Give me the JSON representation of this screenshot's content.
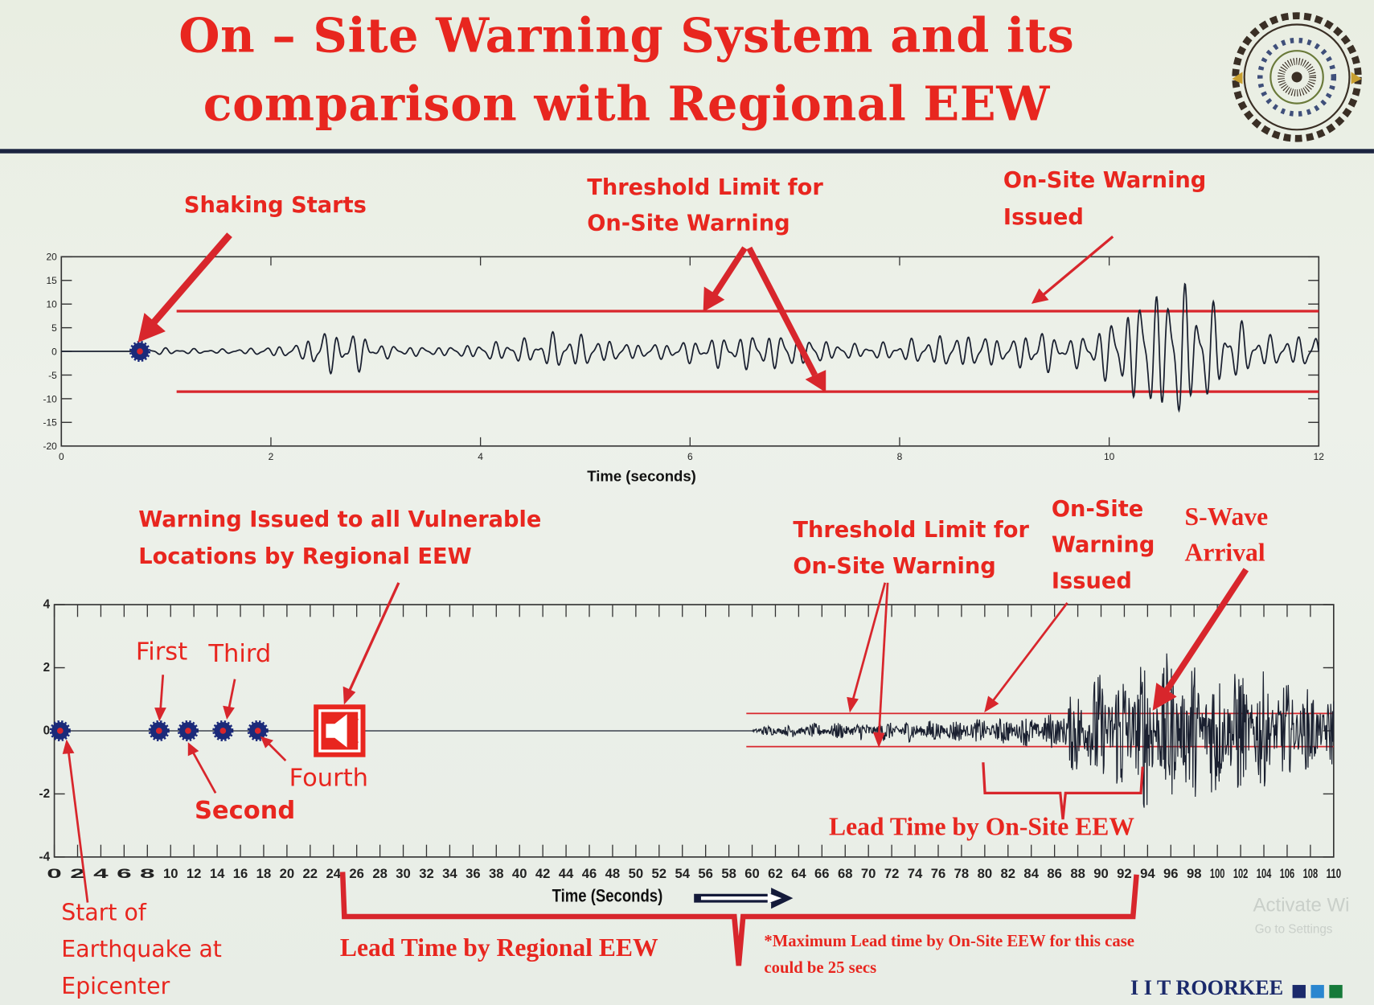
{
  "title": {
    "line1": "On – Site Warning System and its",
    "line2": "comparison with Regional EEW"
  },
  "logo": {
    "name": "iit-roorkee-seal",
    "text": "Indian Institute of Technology Roorkee"
  },
  "top_annotations": {
    "shaking_starts": "Shaking Starts",
    "threshold_line1": "Threshold Limit for",
    "threshold_line2": "On-Site Warning",
    "onsite_line1": "On-Site Warning",
    "onsite_line2": "Issued"
  },
  "bottom_annotations": {
    "regional_line1": "Warning Issued to all Vulnerable",
    "regional_line2": "Locations by Regional EEW",
    "threshold_line1": "Threshold Limit for",
    "threshold_line2": "On-Site Warning",
    "onsite_line1": "On-Site",
    "onsite_line2": "Warning",
    "onsite_line3": "Issued",
    "swave_line1": "S-Wave",
    "swave_line2": "Arrival",
    "first": "First",
    "second": "Second",
    "third": "Third",
    "fourth": "Fourth",
    "start_line1": "Start of",
    "start_line2": "Earthquake at",
    "start_line3": "Epicenter",
    "lead_onsite": "Lead Time by On-Site EEW",
    "lead_regional": "Lead Time by Regional EEW",
    "footnote_line1": "*Maximum Lead time by On-Site EEW for this case",
    "footnote_line2": "could be 25 secs"
  },
  "footer": {
    "brand": "I I T ROORKEE",
    "squares": [
      "#1b2a6b",
      "#2a86d0",
      "#167a3a"
    ],
    "watermark_line1": "Activate Wi",
    "watermark_line2": "Go to Settings"
  },
  "colors": {
    "accent_red": "#e8261f",
    "waveform": "#1a2030",
    "marker": "#1b2a7a",
    "threshold": "#d8262c"
  },
  "chart_data": [
    {
      "type": "line",
      "xlabel": "Time (seconds)",
      "ylabel": "",
      "xlim": [
        0,
        12
      ],
      "ylim": [
        -20,
        20
      ],
      "xticks": [
        0,
        2,
        4,
        6,
        8,
        10,
        12
      ],
      "yticks": [
        20,
        15,
        10,
        5,
        0,
        -5,
        -10,
        -15,
        -20
      ],
      "grid": false,
      "thresholds": {
        "values": [
          8.5,
          -8.5
        ],
        "start_time": 1.1
      },
      "markers": [
        {
          "label": "Shaking Starts",
          "time": 0.75,
          "value": 0
        }
      ],
      "onsite_warning_time": 9.3,
      "series": [
        {
          "amplitude_envelope": [
            [
              0,
              0
            ],
            [
              0.75,
              0
            ],
            [
              0.8,
              1
            ],
            [
              1.8,
              1.5
            ],
            [
              2.3,
              2
            ],
            [
              2.4,
              5
            ],
            [
              2.9,
              5
            ],
            [
              3.0,
              2.5
            ],
            [
              4.5,
              3
            ],
            [
              4.8,
              5
            ],
            [
              6.5,
              4
            ],
            [
              7.0,
              5
            ],
            [
              8.0,
              4
            ],
            [
              9.1,
              4
            ],
            [
              9.3,
              11
            ],
            [
              9.6,
              8
            ],
            [
              10.0,
              13
            ],
            [
              10.3,
              16
            ],
            [
              10.7,
              17
            ],
            [
              11.0,
              13
            ],
            [
              11.5,
              9
            ],
            [
              12,
              8
            ]
          ]
        }
      ]
    },
    {
      "type": "line",
      "xlabel": "Time (Seconds)",
      "ylabel": "",
      "xlim": [
        0,
        110
      ],
      "ylim": [
        -4,
        4
      ],
      "xticks": [
        0,
        2,
        4,
        6,
        8,
        10,
        12,
        14,
        16,
        18,
        20,
        22,
        24,
        26,
        28,
        30,
        32,
        34,
        36,
        38,
        40,
        42,
        44,
        46,
        48,
        50,
        52,
        54,
        56,
        58,
        60,
        62,
        64,
        66,
        68,
        70,
        72,
        74,
        76,
        78,
        80,
        82,
        84,
        86,
        88,
        90,
        92,
        94,
        96,
        98,
        100,
        102,
        104,
        106,
        108,
        110
      ],
      "yticks": [
        4,
        2,
        0,
        -2,
        -4
      ],
      "grid": false,
      "thresholds": {
        "values": [
          0.55,
          -0.5
        ],
        "start_time": 59.5
      },
      "markers": [
        {
          "label": "Start of Earthquake at Epicenter",
          "time": 0.5,
          "value": 0
        },
        {
          "label": "First",
          "time": 9,
          "value": 0
        },
        {
          "label": "Second",
          "time": 11.5,
          "value": 0
        },
        {
          "label": "Third",
          "time": 14.5,
          "value": 0
        },
        {
          "label": "Fourth",
          "time": 17.5,
          "value": 0
        }
      ],
      "regional_warning_time": 24,
      "onsite_warning_time": 80,
      "swave_arrival_time": 94,
      "lead_time_regional": [
        24,
        93
      ],
      "lead_time_onsite": [
        80,
        93
      ],
      "series": [
        {
          "amplitude_envelope": [
            [
              0,
              0
            ],
            [
              60,
              0
            ],
            [
              60.2,
              0.15
            ],
            [
              66,
              0.25
            ],
            [
              72,
              0.35
            ],
            [
              80,
              0.4
            ],
            [
              86,
              0.6
            ],
            [
              88,
              1.6
            ],
            [
              91,
              2.2
            ],
            [
              94,
              2.6
            ],
            [
              98,
              2.4
            ],
            [
              102,
              2.2
            ],
            [
              106,
              1.6
            ],
            [
              110,
              1.2
            ]
          ]
        }
      ]
    }
  ]
}
